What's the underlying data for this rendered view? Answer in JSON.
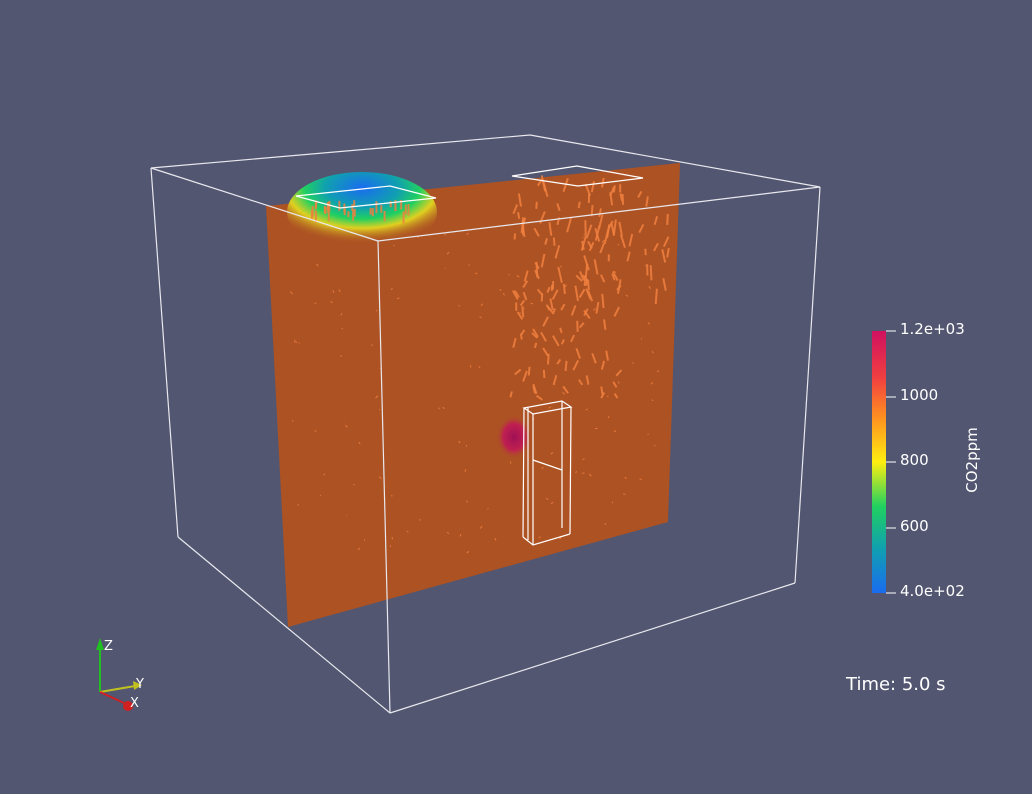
{
  "colorbar": {
    "title": "CO2ppm",
    "labels": [
      "1.2e+03",
      "1000",
      "800",
      "600",
      "4.0e+02"
    ],
    "colors": [
      "#d01060",
      "#f04040",
      "#ff9020",
      "#ffee10",
      "#20d060",
      "#10a0b0",
      "#1a6cf0"
    ]
  },
  "time_annotation": "Time: 5.0 s",
  "orientation_axes": {
    "x": "X",
    "y": "Y",
    "z": "Z"
  },
  "scene": {
    "background": "#525670",
    "slice_color": "#ad5223",
    "arrow_color": "#f08040"
  }
}
